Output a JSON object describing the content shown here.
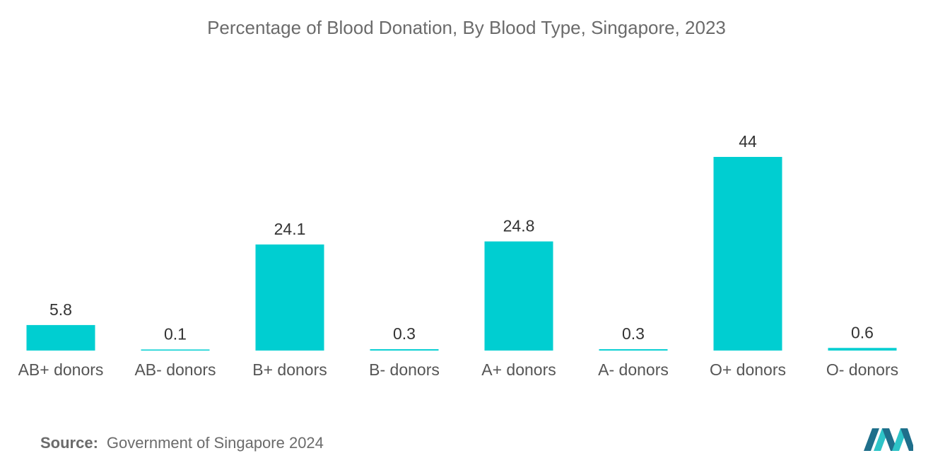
{
  "chart_data": {
    "type": "bar",
    "title": "Percentage of Blood Donation, By Blood Type, Singapore, 2023",
    "categories": [
      "AB+ donors",
      "AB- donors",
      "B+ donors",
      "B- donors",
      "A+ donors",
      "A- donors",
      "O+ donors",
      "O- donors"
    ],
    "values": [
      5.8,
      0.1,
      24.1,
      0.3,
      24.8,
      0.3,
      44,
      0.6
    ],
    "value_labels": [
      "5.8",
      "0.1",
      "24.1",
      "0.3",
      "24.8",
      "0.3",
      "44",
      "0.6"
    ],
    "xlabel": "",
    "ylabel": "",
    "ylim": [
      0,
      50
    ],
    "grid": false,
    "bar_color": "#00ced1"
  },
  "footer": {
    "source_label": "Source:",
    "source_text": "Government of Singapore 2024"
  },
  "colors": {
    "title": "#6b6b6b",
    "label": "#555555",
    "value_label": "#333333",
    "logo_dark": "#1f6f8b",
    "logo_light": "#2ec4c8"
  }
}
